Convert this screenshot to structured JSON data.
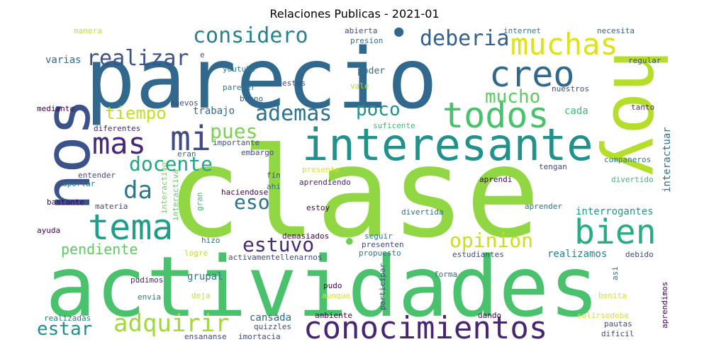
{
  "title": "Relaciones Publicas - 2021-01",
  "colors": {
    "dark_purple": "#440154",
    "indigo": "#3b528b",
    "teal_blue": "#31688e",
    "teal": "#21918c",
    "green_teal": "#1f9e89",
    "green": "#35b779",
    "light_green": "#6ece58",
    "lime": "#90d743",
    "yellow_green": "#b5de2b",
    "yellow": "#fde725"
  },
  "words": {
    "parecio": "parecio",
    "clase": "clase",
    "actividades": "actividades",
    "hoy": "hoy",
    "nos": "nos",
    "interesante": "interesante",
    "todos": "todos",
    "creo": "creo",
    "muchas": "muchas",
    "tema": "tema",
    "conocimientos": "conocimientos",
    "bien": "bien",
    "considero": "considero",
    "realizar": "realizar",
    "deberia": "deberia",
    "mas": "mas",
    "mi": "mi",
    "ademas": "ademas",
    "poco": "poco",
    "mucho": "mucho",
    "tiempo": "tiempo",
    "docente": "docente",
    "pues": "pues",
    "da": "da",
    "eso": "eso",
    "adquirir": "adquirir",
    "estar": "estar",
    "estuvo": "estuvo",
    "opinion": "opinion",
    "pendiente": "pendiente",
    "trabajo": "trabajo",
    "cada": "cada",
    "interrogantes": "interrogantes",
    "realizamos": "realizamos",
    "grupal": "grupal",
    "cansada": "cansada",
    "manera": "manera",
    "varias": "varias",
    "abierta": "abierta",
    "presion": "presion",
    "internet": "internet",
    "necesita": "necesita",
    "e": "e",
    "youtube": "youtube",
    "poder": "poder",
    "regular": "regular",
    "estos": "estos",
    "parecer": "parecer",
    "vale": "vale",
    "nuestros": "nuestros",
    "bueno": "bueno",
    "nuevos": "nuevos",
    "mediante": "mediante",
    "tanto": "tanto",
    "suficente": "suficente",
    "diferentes": "diferentes",
    "importante": "importante",
    "embargo": "embargo",
    "eran": "eran",
    "interactuar": "interactuar",
    "companeros": "companeros",
    "tengan": "tengan",
    "entender": "entender",
    "presente": "presente",
    "fin": "fin",
    "aportar": "aportar",
    "ahi": "ahi",
    "aprendiendo": "aprendiendo",
    "aprendi": "aprendi",
    "divertido": "divertido",
    "haciendose": "haciendose",
    "bastante": "bastante",
    "materia": "materia",
    "estoy": "estoy",
    "aprender": "aprender",
    "divertida": "divertida",
    "interactivo": "interactivo",
    "interactiva": "interactiva",
    "gran": "gran",
    "ayuda": "ayuda",
    "seguir": "seguir",
    "hizo": "hizo",
    "demasiados": "demasiados",
    "presenten": "presenten",
    "logre": "logre",
    "activamentellenarnos": "activamentellenarnos",
    "propuesto": "propuesto",
    "estudiantes": "estudiantes",
    "debido": "debido",
    "asi": "asi",
    "participar": "participar",
    "forma": "forma",
    "pudimos": "pudimos",
    "pudo": "pudo",
    "deja": "deja",
    "envia": "envia",
    "aunque": "aunque",
    "bonita": "bonita",
    "ambiente": "ambiente",
    "salirsedebe": "salirsedebe",
    "aprendimos": "aprendimos",
    "realizadas": "realizadas",
    "dando": "dando",
    "pautas": "pautas",
    "quizzles": "quizzles",
    "dificil": "dificil",
    "ensananse": "ensananse",
    "imortacia": "imortacia"
  }
}
